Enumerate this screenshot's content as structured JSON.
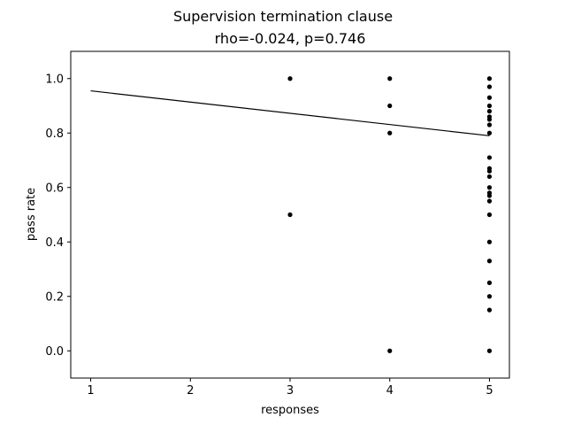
{
  "chart_data": {
    "type": "scatter",
    "title": "Supervision termination clause",
    "subtitle": "rho=-0.024, p=0.746",
    "xlabel": "responses",
    "ylabel": "pass rate",
    "xlim": [
      0.8,
      5.2
    ],
    "ylim": [
      -0.1,
      1.1
    ],
    "xticks": [
      1,
      2,
      3,
      4,
      5
    ],
    "yticks": [
      0.0,
      0.2,
      0.4,
      0.6,
      0.8,
      1.0
    ],
    "xtick_labels": [
      "1",
      "2",
      "3",
      "4",
      "5"
    ],
    "ytick_labels": [
      "0.0",
      "0.2",
      "0.4",
      "0.6",
      "0.8",
      "1.0"
    ],
    "grid": false,
    "marker_color": "#000000",
    "line_color": "#000000",
    "points": [
      [
        3,
        1.0
      ],
      [
        3,
        0.5
      ],
      [
        4,
        1.0
      ],
      [
        4,
        0.9
      ],
      [
        4,
        0.8
      ],
      [
        4,
        0.0
      ],
      [
        5,
        1.0
      ],
      [
        5,
        0.97
      ],
      [
        5,
        0.93
      ],
      [
        5,
        0.9
      ],
      [
        5,
        0.88
      ],
      [
        5,
        0.86
      ],
      [
        5,
        0.85
      ],
      [
        5,
        0.83
      ],
      [
        5,
        0.8
      ],
      [
        5,
        0.71
      ],
      [
        5,
        0.67
      ],
      [
        5,
        0.66
      ],
      [
        5,
        0.64
      ],
      [
        5,
        0.6
      ],
      [
        5,
        0.58
      ],
      [
        5,
        0.57
      ],
      [
        5,
        0.55
      ],
      [
        5,
        0.5
      ],
      [
        5,
        0.4
      ],
      [
        5,
        0.33
      ],
      [
        5,
        0.25
      ],
      [
        5,
        0.2
      ],
      [
        5,
        0.15
      ],
      [
        5,
        0.0
      ]
    ],
    "fit_line": {
      "x": [
        1,
        5
      ],
      "y": [
        0.955,
        0.79
      ]
    }
  }
}
